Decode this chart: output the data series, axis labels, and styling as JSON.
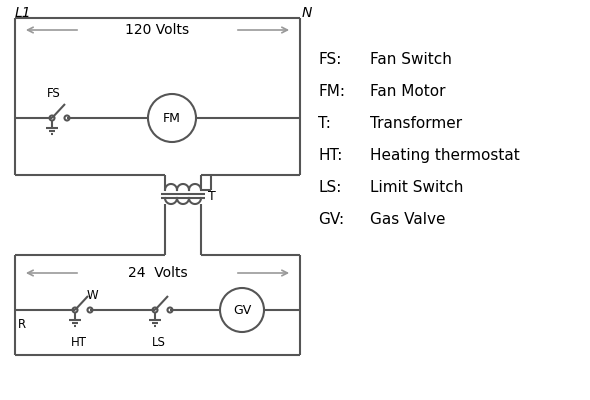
{
  "background_color": "#ffffff",
  "line_color": "#555555",
  "arrow_color": "#999999",
  "text_color": "#000000",
  "legend_items": [
    [
      "FS:  ",
      "Fan Switch"
    ],
    [
      "FM:  ",
      "Fan Motor"
    ],
    [
      "T:    ",
      "Transformer"
    ],
    [
      "HT:  ",
      "Heating thermostat"
    ],
    [
      "LS:   ",
      "Limit Switch"
    ],
    [
      "GV:  ",
      "Gas Valve"
    ]
  ],
  "L1_label": "L1",
  "N_label": "N",
  "volts120_label": "120 Volts",
  "volts24_label": "24  Volts",
  "T_label": "T",
  "FS_label": "FS",
  "FM_label": "FM",
  "GV_label": "GV",
  "HT_label": "HT",
  "LS_label": "LS",
  "R_label": "R",
  "W_label": "W"
}
